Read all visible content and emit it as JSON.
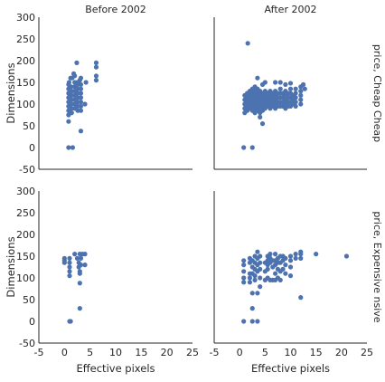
{
  "chart_data": {
    "type": "scatter",
    "xlabel": "Effective pixels",
    "ylabel": "Dimensions",
    "xlim": [
      -5,
      25
    ],
    "ylim": [
      -50,
      300
    ],
    "xticks": [
      -5,
      0,
      5,
      10,
      15,
      20,
      25
    ],
    "yticks": [
      -50,
      0,
      50,
      100,
      150,
      200,
      250,
      300
    ],
    "grid": false,
    "point_color": "#4c72b0",
    "column_titles": [
      "Before 2002",
      "After 2002"
    ],
    "row_titles": [
      "price, Cheap Cheap",
      "price, Expensive nsive"
    ],
    "panels": [
      {
        "row": 0,
        "col": 0,
        "points": [
          [
            0.8,
            0
          ],
          [
            1.6,
            0
          ],
          [
            2.4,
            195
          ],
          [
            3.2,
            38
          ],
          [
            4.0,
            100
          ],
          [
            6.2,
            195
          ],
          [
            6.2,
            185
          ],
          [
            6.2,
            165
          ],
          [
            6.2,
            155
          ],
          [
            4.2,
            150
          ],
          [
            3.2,
            160
          ],
          [
            3.0,
            155
          ],
          [
            2.5,
            150
          ],
          [
            2.0,
            165
          ],
          [
            1.8,
            170
          ],
          [
            1.5,
            160
          ],
          [
            1.2,
            160
          ],
          [
            0.9,
            150
          ],
          [
            0.8,
            145
          ],
          [
            0.8,
            135
          ],
          [
            0.8,
            125
          ],
          [
            0.8,
            115
          ],
          [
            0.8,
            105
          ],
          [
            0.8,
            95
          ],
          [
            0.8,
            85
          ],
          [
            0.8,
            75
          ],
          [
            0.8,
            60
          ],
          [
            1.3,
            140
          ],
          [
            1.4,
            130
          ],
          [
            1.4,
            120
          ],
          [
            1.4,
            110
          ],
          [
            1.4,
            100
          ],
          [
            1.4,
            90
          ],
          [
            1.4,
            80
          ],
          [
            2.0,
            150
          ],
          [
            2.0,
            140
          ],
          [
            2.0,
            130
          ],
          [
            2.0,
            120
          ],
          [
            2.0,
            110
          ],
          [
            2.0,
            100
          ],
          [
            2.0,
            90
          ],
          [
            2.6,
            145
          ],
          [
            2.6,
            135
          ],
          [
            2.6,
            125
          ],
          [
            2.6,
            115
          ],
          [
            2.6,
            105
          ],
          [
            2.6,
            95
          ],
          [
            2.6,
            85
          ],
          [
            3.2,
            145
          ],
          [
            3.2,
            135
          ],
          [
            3.2,
            125
          ],
          [
            3.2,
            115
          ],
          [
            3.2,
            105
          ],
          [
            3.2,
            95
          ],
          [
            3.2,
            85
          ]
        ]
      },
      {
        "row": 0,
        "col": 1,
        "points": [
          [
            0.8,
            0
          ],
          [
            2.5,
            0
          ],
          [
            1.6,
            240
          ],
          [
            3.5,
            160
          ],
          [
            4.5,
            145
          ],
          [
            5.0,
            150
          ],
          [
            7.0,
            150
          ],
          [
            8.0,
            150
          ],
          [
            9.0,
            145
          ],
          [
            10.0,
            148
          ],
          [
            12.5,
            145
          ],
          [
            1.0,
            120
          ],
          [
            1.0,
            110
          ],
          [
            1.0,
            100
          ],
          [
            1.0,
            90
          ],
          [
            1.0,
            80
          ],
          [
            1.5,
            125
          ],
          [
            1.5,
            115
          ],
          [
            1.5,
            105
          ],
          [
            1.5,
            95
          ],
          [
            1.5,
            85
          ],
          [
            2.0,
            130
          ],
          [
            2.0,
            120
          ],
          [
            2.0,
            110
          ],
          [
            2.0,
            100
          ],
          [
            2.0,
            90
          ],
          [
            2.5,
            135
          ],
          [
            2.5,
            125
          ],
          [
            2.5,
            115
          ],
          [
            2.5,
            105
          ],
          [
            2.5,
            95
          ],
          [
            2.5,
            85
          ],
          [
            3.0,
            140
          ],
          [
            3.0,
            130
          ],
          [
            3.0,
            120
          ],
          [
            3.0,
            110
          ],
          [
            3.0,
            100
          ],
          [
            3.0,
            90
          ],
          [
            3.0,
            80
          ],
          [
            3.5,
            135
          ],
          [
            3.5,
            125
          ],
          [
            3.5,
            115
          ],
          [
            3.5,
            105
          ],
          [
            3.5,
            95
          ],
          [
            3.5,
            85
          ],
          [
            4.0,
            130
          ],
          [
            4.0,
            120
          ],
          [
            4.0,
            110
          ],
          [
            4.0,
            100
          ],
          [
            4.0,
            90
          ],
          [
            4.0,
            80
          ],
          [
            4.0,
            70
          ],
          [
            4.5,
            125
          ],
          [
            4.5,
            115
          ],
          [
            4.5,
            105
          ],
          [
            4.5,
            95
          ],
          [
            4.5,
            85
          ],
          [
            4.5,
            55
          ],
          [
            5.0,
            130
          ],
          [
            5.0,
            120
          ],
          [
            5.0,
            110
          ],
          [
            5.0,
            100
          ],
          [
            5.0,
            90
          ],
          [
            5.5,
            125
          ],
          [
            5.5,
            115
          ],
          [
            5.5,
            105
          ],
          [
            5.5,
            95
          ],
          [
            6.0,
            130
          ],
          [
            6.0,
            120
          ],
          [
            6.0,
            110
          ],
          [
            6.0,
            100
          ],
          [
            6.0,
            90
          ],
          [
            6.5,
            125
          ],
          [
            6.5,
            115
          ],
          [
            6.5,
            105
          ],
          [
            6.5,
            95
          ],
          [
            7.0,
            130
          ],
          [
            7.0,
            120
          ],
          [
            7.0,
            110
          ],
          [
            7.0,
            100
          ],
          [
            7.0,
            90
          ],
          [
            7.5,
            125
          ],
          [
            7.5,
            115
          ],
          [
            7.5,
            105
          ],
          [
            7.5,
            95
          ],
          [
            8.0,
            135
          ],
          [
            8.0,
            125
          ],
          [
            8.0,
            115
          ],
          [
            8.0,
            105
          ],
          [
            8.0,
            95
          ],
          [
            8.5,
            125
          ],
          [
            8.5,
            115
          ],
          [
            8.5,
            105
          ],
          [
            8.5,
            95
          ],
          [
            9.0,
            130
          ],
          [
            9.0,
            120
          ],
          [
            9.0,
            110
          ],
          [
            9.0,
            100
          ],
          [
            9.0,
            90
          ],
          [
            9.5,
            125
          ],
          [
            9.5,
            115
          ],
          [
            9.5,
            105
          ],
          [
            9.5,
            95
          ],
          [
            10.0,
            135
          ],
          [
            10.0,
            125
          ],
          [
            10.0,
            115
          ],
          [
            10.0,
            105
          ],
          [
            10.0,
            95
          ],
          [
            10.5,
            120
          ],
          [
            10.5,
            110
          ],
          [
            10.5,
            100
          ],
          [
            11.0,
            135
          ],
          [
            11.0,
            125
          ],
          [
            11.0,
            115
          ],
          [
            11.0,
            105
          ],
          [
            11.0,
            95
          ],
          [
            12.0,
            140
          ],
          [
            12.0,
            130
          ],
          [
            12.0,
            120
          ],
          [
            12.0,
            110
          ],
          [
            12.0,
            100
          ],
          [
            12.8,
            135
          ]
        ]
      },
      {
        "row": 1,
        "col": 0,
        "points": [
          [
            0.0,
            145
          ],
          [
            0.0,
            140
          ],
          [
            0.0,
            135
          ],
          [
            1.0,
            145
          ],
          [
            1.0,
            135
          ],
          [
            1.0,
            125
          ],
          [
            1.0,
            115
          ],
          [
            1.0,
            105
          ],
          [
            1.0,
            0
          ],
          [
            1.2,
            0
          ],
          [
            2.0,
            155
          ],
          [
            2.5,
            145
          ],
          [
            3.0,
            155
          ],
          [
            3.5,
            155
          ],
          [
            4.0,
            155
          ],
          [
            2.8,
            135
          ],
          [
            2.8,
            125
          ],
          [
            3.2,
            145
          ],
          [
            3.2,
            130
          ],
          [
            3.0,
            115
          ],
          [
            3.0,
            110
          ],
          [
            3.0,
            88
          ],
          [
            3.0,
            30
          ],
          [
            4.0,
            130
          ]
        ]
      },
      {
        "row": 1,
        "col": 1,
        "points": [
          [
            0.8,
            0
          ],
          [
            2.5,
            0
          ],
          [
            3.5,
            0
          ],
          [
            0.8,
            140
          ],
          [
            0.8,
            130
          ],
          [
            0.8,
            115
          ],
          [
            0.8,
            100
          ],
          [
            0.8,
            90
          ],
          [
            2.0,
            145
          ],
          [
            2.0,
            135
          ],
          [
            2.0,
            110
          ],
          [
            2.0,
            100
          ],
          [
            2.0,
            90
          ],
          [
            2.5,
            140
          ],
          [
            2.5,
            125
          ],
          [
            2.5,
            110
          ],
          [
            2.5,
            65
          ],
          [
            2.5,
            30
          ],
          [
            3.0,
            150
          ],
          [
            3.0,
            135
          ],
          [
            3.0,
            120
          ],
          [
            3.0,
            105
          ],
          [
            3.0,
            95
          ],
          [
            3.5,
            160
          ],
          [
            3.5,
            145
          ],
          [
            3.5,
            130
          ],
          [
            3.5,
            115
          ],
          [
            3.5,
            65
          ],
          [
            4.0,
            150
          ],
          [
            4.0,
            135
          ],
          [
            4.0,
            120
          ],
          [
            4.0,
            100
          ],
          [
            4.0,
            80
          ],
          [
            5.0,
            135
          ],
          [
            5.0,
            115
          ],
          [
            5.0,
            95
          ],
          [
            5.5,
            150
          ],
          [
            5.5,
            140
          ],
          [
            5.5,
            130
          ],
          [
            5.5,
            120
          ],
          [
            5.5,
            100
          ],
          [
            6.0,
            155
          ],
          [
            6.0,
            145
          ],
          [
            6.0,
            135
          ],
          [
            6.0,
            95
          ],
          [
            6.5,
            140
          ],
          [
            6.5,
            125
          ],
          [
            6.5,
            95
          ],
          [
            7.0,
            155
          ],
          [
            7.0,
            140
          ],
          [
            7.0,
            130
          ],
          [
            7.0,
            110
          ],
          [
            7.0,
            95
          ],
          [
            7.5,
            145
          ],
          [
            7.5,
            135
          ],
          [
            7.5,
            120
          ],
          [
            7.5,
            100
          ],
          [
            8.0,
            150
          ],
          [
            8.0,
            135
          ],
          [
            8.0,
            115
          ],
          [
            8.0,
            95
          ],
          [
            8.5,
            150
          ],
          [
            8.5,
            140
          ],
          [
            8.5,
            120
          ],
          [
            9.0,
            145
          ],
          [
            9.0,
            130
          ],
          [
            9.0,
            110
          ],
          [
            10.0,
            150
          ],
          [
            10.0,
            140
          ],
          [
            10.0,
            125
          ],
          [
            10.0,
            105
          ],
          [
            11.0,
            155
          ],
          [
            11.0,
            145
          ],
          [
            12.0,
            160
          ],
          [
            12.0,
            155
          ],
          [
            12.0,
            145
          ],
          [
            12.0,
            55
          ],
          [
            15.0,
            155
          ],
          [
            21.0,
            150
          ]
        ]
      }
    ]
  }
}
